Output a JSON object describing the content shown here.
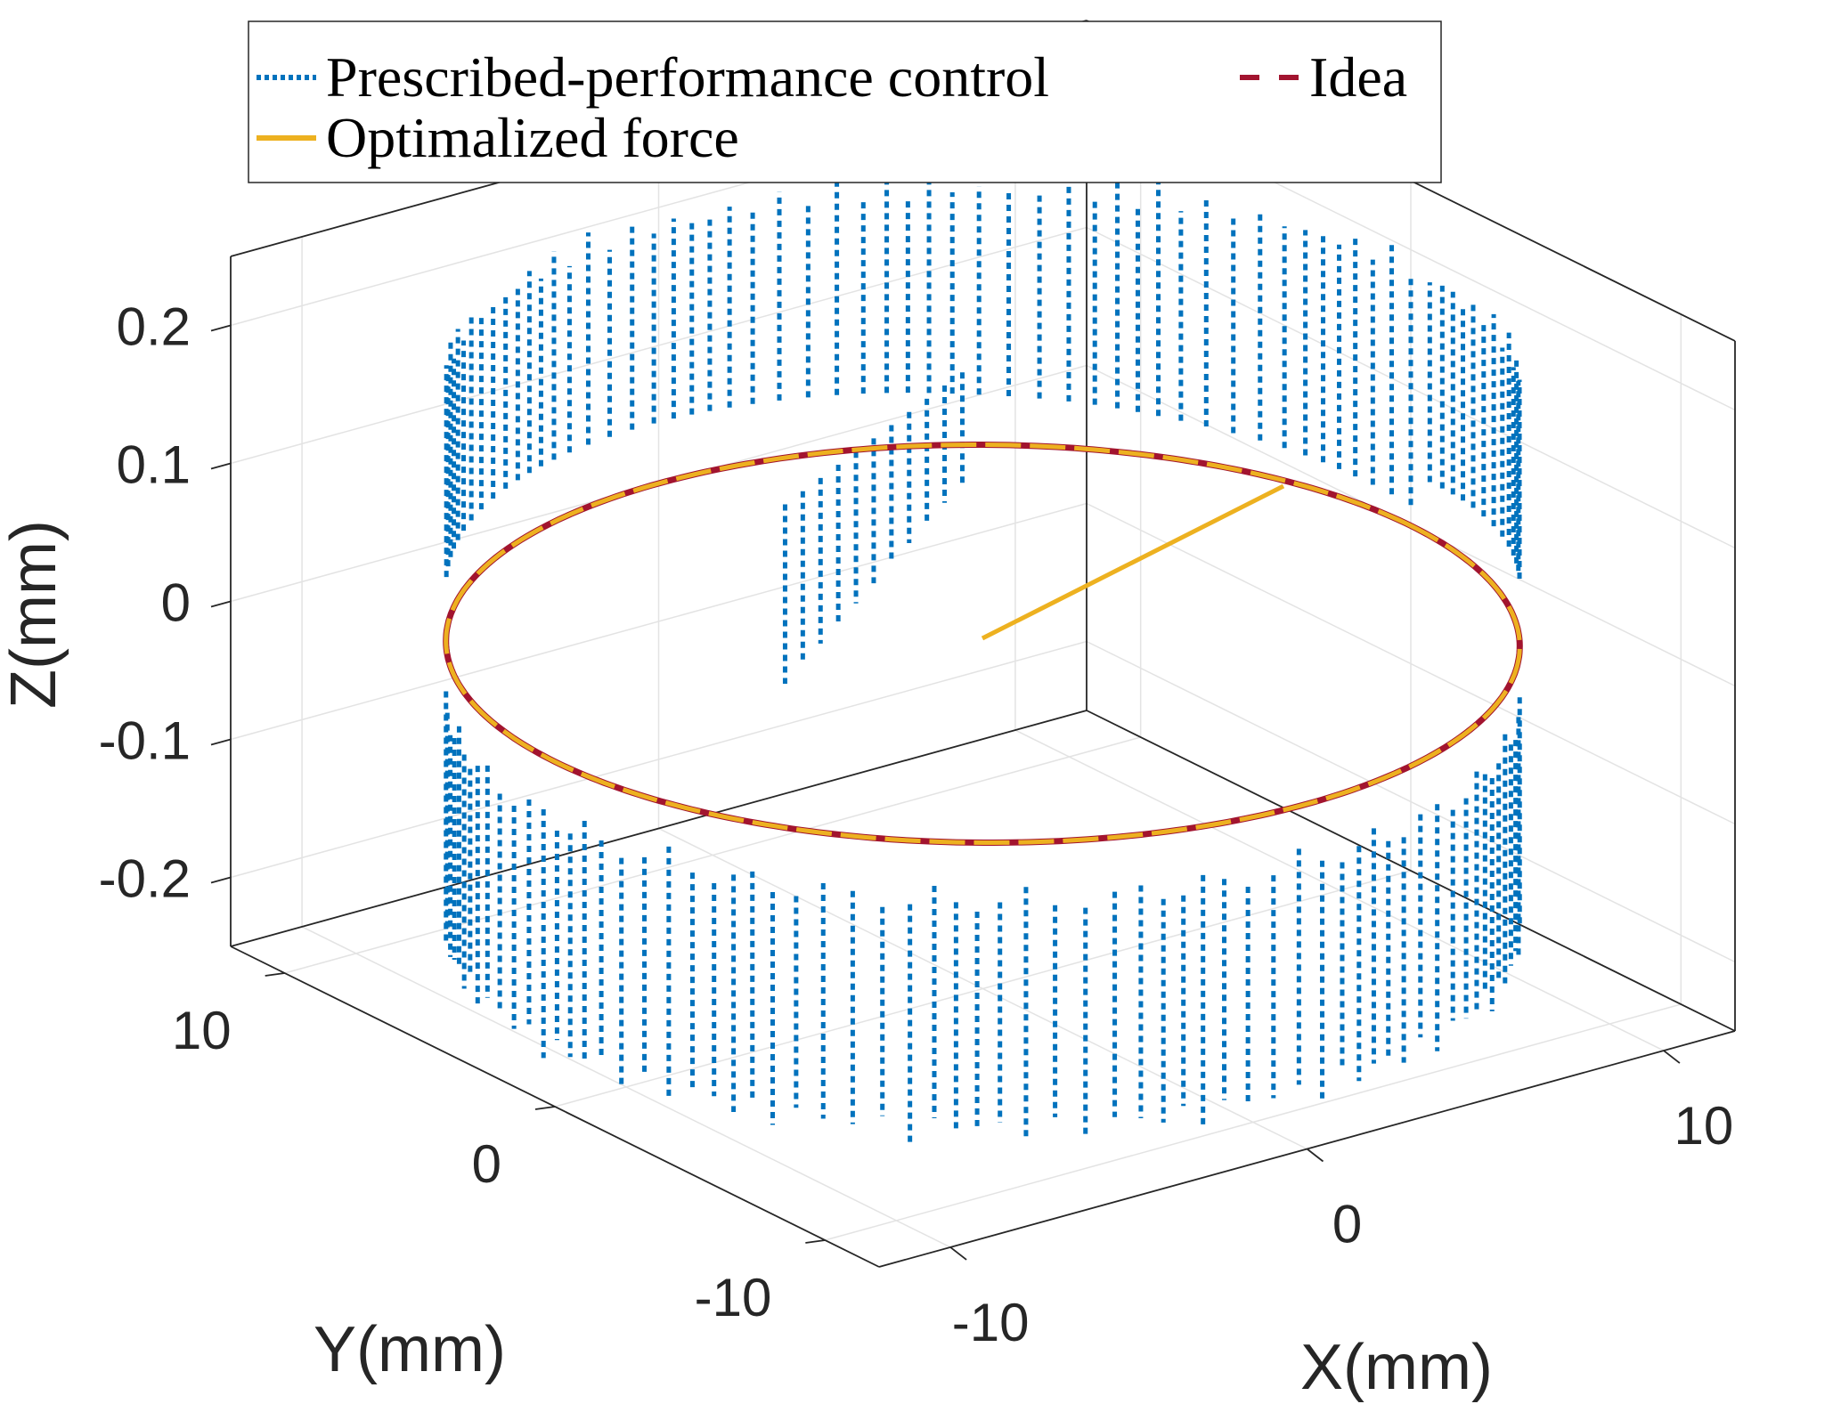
{
  "chart_data": {
    "type": "line3d",
    "title": "",
    "xlabel": "X(mm)",
    "ylabel": "Y(mm)",
    "zlabel": "Z(mm)",
    "xlim": [
      -12,
      12
    ],
    "ylim": [
      -12,
      12
    ],
    "zlim": [
      -0.25,
      0.25
    ],
    "xticks": [
      "-10",
      "0",
      "10"
    ],
    "yticks": [
      "-10",
      "0",
      "10"
    ],
    "zticks": [
      "-0.2",
      "-0.1",
      "0",
      "0.1",
      "0.2"
    ],
    "xtick_values": [
      -10,
      0,
      10
    ],
    "ytick_values": [
      -10,
      0,
      10
    ],
    "ztick_values": [
      -0.2,
      -0.1,
      0,
      0.1,
      0.2
    ],
    "grid": true,
    "legend_position": "top",
    "series": [
      {
        "name": "Prescribed-performance control",
        "style": "dotted",
        "color": "#0072BD",
        "shape": "circle radius 12 with z oscillation",
        "radius": 12,
        "z_range": [
          -0.22,
          0.2
        ]
      },
      {
        "name": "Idea",
        "style": "dashed",
        "color": "#A2142F",
        "shape": "circle",
        "radius": 12,
        "z": 0
      },
      {
        "name": "Optimalized force",
        "style": "solid",
        "color": "#EDB120",
        "shape": "circle",
        "radius": 12,
        "z": 0
      }
    ]
  }
}
